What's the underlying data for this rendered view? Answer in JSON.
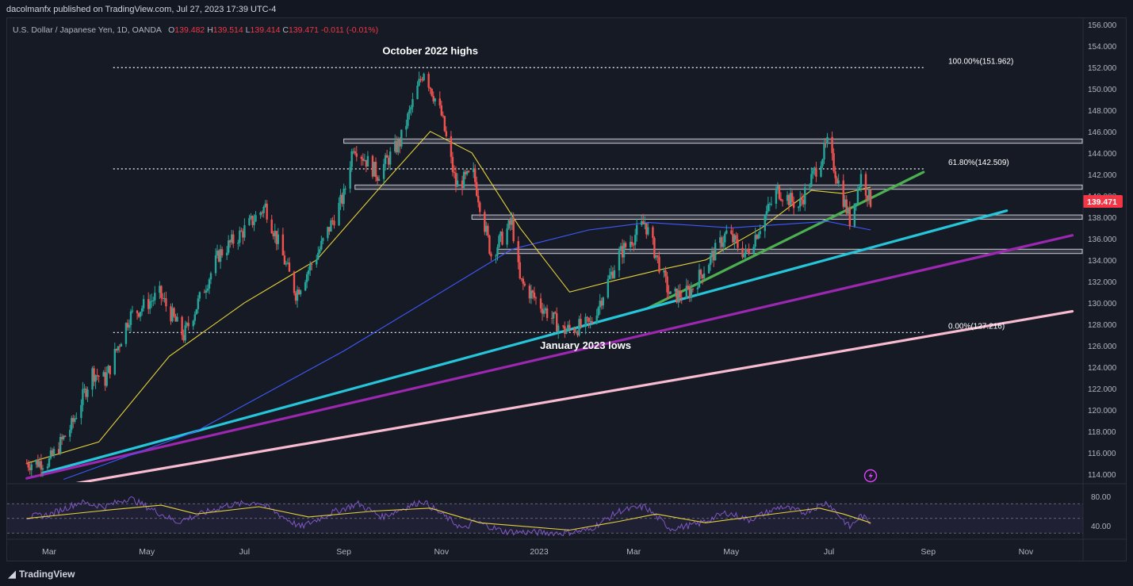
{
  "header": {
    "published": "dacolmanfx published on TradingView.com, Jul 27, 2023 17:39 UTC-4",
    "symbol": "U.S. Dollar / Japanese Yen, 1D, OANDA",
    "ohlc": {
      "o_label": "O",
      "o": "139.482",
      "h_label": "H",
      "h": "139.514",
      "l_label": "L",
      "l": "139.414",
      "c_label": "C",
      "c": "139.471",
      "change": "-0.011 (-0.01%)"
    }
  },
  "footer": {
    "brand": "TradingView",
    "brand_icon": "tradingview-logo-icon"
  },
  "colors": {
    "background": "#161a25",
    "up": "#26a69a",
    "down": "#ef5350",
    "sma_fast": "#e6d23a",
    "sma_slow": "#3d5afe",
    "trend_green": "#4caf50",
    "trend_cyan": "#26c6da",
    "trend_purple": "#9c27b0",
    "trend_pink": "#f8bbd0",
    "price_badge": "#f23645"
  },
  "chart_data": {
    "type": "candlestick",
    "title": "U.S. Dollar / Japanese Yen, 1D, OANDA",
    "ylim": [
      113,
      157
    ],
    "y_ticks": [
      "156.000",
      "154.000",
      "152.000",
      "150.000",
      "148.000",
      "146.000",
      "144.000",
      "142.000",
      "140.000",
      "138.000",
      "136.000",
      "134.000",
      "132.000",
      "130.000",
      "128.000",
      "126.000",
      "124.000",
      "122.000",
      "120.000",
      "118.000",
      "116.000",
      "114.000"
    ],
    "x_ticks": [
      "Mar",
      "May",
      "Jul",
      "Sep",
      "Nov",
      "2023",
      "Mar",
      "May",
      "Jul",
      "Sep",
      "Nov"
    ],
    "last_price": "139.471",
    "price_path": [
      [
        "2022-02-15",
        115.0
      ],
      [
        "2022-03-01",
        115.2
      ],
      [
        "2022-03-15",
        118.5
      ],
      [
        "2022-03-28",
        123.5
      ],
      [
        "2022-04-05",
        122.8
      ],
      [
        "2022-04-20",
        128.7
      ],
      [
        "2022-05-09",
        130.8
      ],
      [
        "2022-05-24",
        126.9
      ],
      [
        "2022-06-15",
        134.5
      ],
      [
        "2022-06-29",
        136.5
      ],
      [
        "2022-07-14",
        139.0
      ],
      [
        "2022-08-02",
        130.9
      ],
      [
        "2022-08-17",
        135.0
      ],
      [
        "2022-09-01",
        140.0
      ],
      [
        "2022-09-07",
        144.8
      ],
      [
        "2022-09-22",
        142.0
      ],
      [
        "2022-10-06",
        145.0
      ],
      [
        "2022-10-21",
        151.8
      ],
      [
        "2022-11-01",
        147.5
      ],
      [
        "2022-11-10",
        141.0
      ],
      [
        "2022-11-21",
        142.0
      ],
      [
        "2022-12-02",
        134.5
      ],
      [
        "2022-12-15",
        137.5
      ],
      [
        "2022-12-20",
        132.0
      ],
      [
        "2023-01-16",
        127.4
      ],
      [
        "2023-02-02",
        128.0
      ],
      [
        "2023-02-20",
        134.5
      ],
      [
        "2023-03-08",
        137.5
      ],
      [
        "2023-03-24",
        130.5
      ],
      [
        "2023-04-05",
        131.0
      ],
      [
        "2023-04-28",
        136.5
      ],
      [
        "2023-05-10",
        134.5
      ],
      [
        "2023-05-30",
        140.5
      ],
      [
        "2023-06-12",
        139.0
      ],
      [
        "2023-06-30",
        144.8
      ],
      [
        "2023-07-14",
        137.7
      ],
      [
        "2023-07-21",
        141.8
      ],
      [
        "2023-07-27",
        139.47
      ]
    ],
    "sma_fast": {
      "name": "",
      "values": [
        [
          "2022-02-15",
          115.0
        ],
        [
          "2022-04-01",
          117.0
        ],
        [
          "2022-05-15",
          125.0
        ],
        [
          "2022-07-01",
          130.0
        ],
        [
          "2022-08-15",
          134.0
        ],
        [
          "2022-09-25",
          141.0
        ],
        [
          "2022-10-25",
          146.0
        ],
        [
          "2022-11-20",
          144.0
        ],
        [
          "2022-12-20",
          137.0
        ],
        [
          "2023-01-20",
          131.0
        ],
        [
          "2023-02-15",
          132.0
        ],
        [
          "2023-03-15",
          133.0
        ],
        [
          "2023-04-15",
          134.0
        ],
        [
          "2023-05-20",
          137.0
        ],
        [
          "2023-06-20",
          140.5
        ],
        [
          "2023-07-10",
          140.2
        ],
        [
          "2023-07-27",
          140.8
        ]
      ]
    },
    "sma_slow": {
      "name": "",
      "values": [
        [
          "2022-03-10",
          113.5
        ],
        [
          "2022-06-01",
          118.0
        ],
        [
          "2022-09-01",
          125.5
        ],
        [
          "2022-11-01",
          131.0
        ],
        [
          "2022-12-15",
          135.0
        ],
        [
          "2023-02-01",
          136.8
        ],
        [
          "2023-03-10",
          137.5
        ],
        [
          "2023-05-01",
          137.0
        ],
        [
          "2023-06-30",
          137.6
        ],
        [
          "2023-07-27",
          136.8
        ]
      ]
    },
    "horizontal_zones": [
      {
        "name": "zone-145",
        "low": 144.9,
        "high": 145.3,
        "from": "2022-09-01"
      },
      {
        "name": "zone-141",
        "low": 140.6,
        "high": 141.0,
        "from": "2022-09-08"
      },
      {
        "name": "zone-138",
        "low": 137.8,
        "high": 138.2,
        "from": "2022-11-20"
      },
      {
        "name": "zone-135",
        "low": 134.6,
        "high": 135.0,
        "from": "2022-12-06"
      }
    ],
    "fibonacci": [
      {
        "label": "100.00%(151.962)",
        "price": 151.962
      },
      {
        "label": "61.80%(142.509)",
        "price": 142.509
      },
      {
        "label": "0.00%(127.216)",
        "price": 127.216
      }
    ],
    "trendlines": [
      {
        "name": "trend-green",
        "from": [
          "2023-03-10",
          129.5
        ],
        "to": [
          "2023-08-29",
          142.2
        ]
      },
      {
        "name": "trend-cyan",
        "from": [
          "2022-02-25",
          114.1
        ],
        "to": [
          "2023-10-20",
          138.6
        ]
      },
      {
        "name": "trend-purple",
        "from": [
          "2022-02-15",
          113.6
        ],
        "to": [
          "2023-11-30",
          136.3
        ]
      },
      {
        "name": "trend-pink",
        "from": [
          "2022-03-05",
          112.8
        ],
        "to": [
          "2023-11-30",
          129.2
        ]
      }
    ],
    "annotations": [
      {
        "text": "October 2022 highs",
        "at": [
          "2022-10-25",
          153.2
        ]
      },
      {
        "text": "January 2023 lows",
        "at": [
          "2023-01-30",
          125.7
        ]
      }
    ],
    "rsi": {
      "y_ticks": [
        "80.00",
        "40.00"
      ],
      "upper": 70,
      "lower": 30,
      "values": [
        [
          "2022-02-15",
          52
        ],
        [
          "2022-03-01",
          55
        ],
        [
          "2022-03-20",
          72
        ],
        [
          "2022-04-05",
          66
        ],
        [
          "2022-04-20",
          78
        ],
        [
          "2022-05-20",
          45
        ],
        [
          "2022-06-20",
          68
        ],
        [
          "2022-07-10",
          72
        ],
        [
          "2022-08-05",
          38
        ],
        [
          "2022-08-25",
          58
        ],
        [
          "2022-09-10",
          70
        ],
        [
          "2022-09-25",
          52
        ],
        [
          "2022-10-20",
          74
        ],
        [
          "2022-11-15",
          35
        ],
        [
          "2022-11-22",
          46
        ],
        [
          "2022-12-10",
          32
        ],
        [
          "2023-01-15",
          30
        ],
        [
          "2023-02-01",
          34
        ],
        [
          "2023-02-20",
          60
        ],
        [
          "2023-03-08",
          66
        ],
        [
          "2023-03-24",
          36
        ],
        [
          "2023-04-10",
          42
        ],
        [
          "2023-04-28",
          58
        ],
        [
          "2023-05-12",
          48
        ],
        [
          "2023-06-01",
          66
        ],
        [
          "2023-06-15",
          58
        ],
        [
          "2023-06-30",
          72
        ],
        [
          "2023-07-14",
          38
        ],
        [
          "2023-07-21",
          54
        ],
        [
          "2023-07-27",
          44
        ]
      ],
      "signal": [
        [
          "2022-02-15",
          50
        ],
        [
          "2022-04-10",
          62
        ],
        [
          "2022-05-10",
          68
        ],
        [
          "2022-06-01",
          56
        ],
        [
          "2022-07-10",
          66
        ],
        [
          "2022-08-10",
          52
        ],
        [
          "2022-09-20",
          60
        ],
        [
          "2022-10-25",
          64
        ],
        [
          "2022-11-25",
          44
        ],
        [
          "2023-01-20",
          34
        ],
        [
          "2023-02-20",
          46
        ],
        [
          "2023-03-15",
          56
        ],
        [
          "2023-04-15",
          44
        ],
        [
          "2023-05-20",
          54
        ],
        [
          "2023-06-25",
          64
        ],
        [
          "2023-07-10",
          56
        ],
        [
          "2023-07-27",
          44
        ]
      ]
    }
  }
}
